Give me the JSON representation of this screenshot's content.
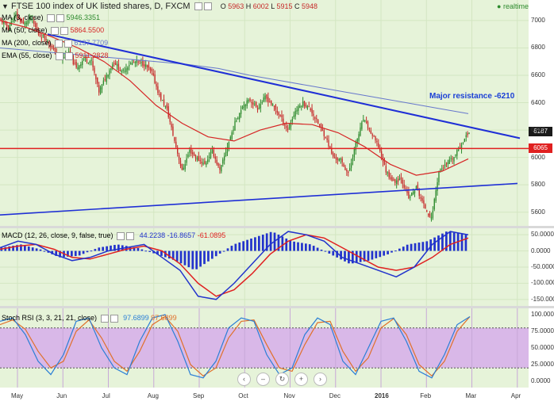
{
  "header": {
    "title": "FTSE 100 index of UK listed shares, D, FXCM",
    "ohlc": [
      {
        "k": "O",
        "v": "5963"
      },
      {
        "k": "H",
        "v": "6002"
      },
      {
        "k": "L",
        "v": "5915"
      },
      {
        "k": "C",
        "v": "5948"
      }
    ],
    "realtime_label": "realtime"
  },
  "indicators": [
    {
      "name": "MA (3, close)",
      "value": "5946.3351",
      "color": "#2d8a2d"
    },
    {
      "name": "MA (50, close)",
      "value": "5864.5500",
      "color": "#d62424"
    },
    {
      "name": "MA (200, close)",
      "value": "6137.7709",
      "color": "#6677cc"
    },
    {
      "name": "EMA (55, close)",
      "value": "5911.2828",
      "color": "#d62424"
    }
  ],
  "annotation": "Major resistance -6210",
  "price_tags": {
    "last": "6187",
    "level": "6065"
  },
  "macd_label": "MACD (12, 26, close, 9, false, true)",
  "macd_values": [
    "44.2238",
    "-16.8657",
    "-61.0895"
  ],
  "rsi_label": "Stoch RSI (3, 3, 21, 21, close)",
  "rsi_values": [
    "97.6899",
    "97.6899"
  ],
  "nav_buttons": [
    "‹",
    "–",
    "↻",
    "+",
    "›"
  ],
  "colors": {
    "up": "#2d8a2d",
    "down": "#c62828",
    "trend": "#1f2fd6",
    "level": "#e02020",
    "ma200": "#6677cc",
    "ema": "#d62424",
    "macd": "#2233cc",
    "signal": "#e02020",
    "rsi_k": "#2b7fd6",
    "rsi_d": "#e0702a"
  },
  "chart_data": [
    {
      "type": "candlestick",
      "title": "FTSE 100 index of UK listed shares, D, FXCM",
      "ylim": [
        5500,
        7150
      ],
      "y_ticks": [
        5600,
        5800,
        6000,
        6200,
        6400,
        6600,
        6800,
        7000
      ],
      "x_ticks": [
        "May",
        "Jun",
        "Jul",
        "Aug",
        "Sep",
        "Oct",
        "Nov",
        "Dec",
        "2016",
        "Feb",
        "Mar",
        "Apr"
      ],
      "close_path": [
        7000,
        6950,
        7040,
        6970,
        7020,
        6900,
        6870,
        6780,
        6720,
        6760,
        6650,
        6720,
        6700,
        6480,
        6600,
        6700,
        6620,
        6680,
        6700,
        6680,
        6620,
        6450,
        6350,
        6120,
        5900,
        6050,
        5990,
        5950,
        6050,
        5900,
        6080,
        6250,
        6380,
        6420,
        6360,
        6440,
        6380,
        6300,
        6200,
        6340,
        6400,
        6350,
        6250,
        6150,
        6000,
        5980,
        5880,
        6100,
        6280,
        6180,
        6080,
        5900,
        5820,
        5850,
        5700,
        5780,
        5650,
        5550,
        5900,
        5950,
        6000,
        6100,
        6187
      ],
      "series": [
        {
          "name": "MA (200, close)",
          "values": [
            6800,
            6780,
            6760,
            6740,
            6720,
            6700,
            6680,
            6650,
            6600,
            6560,
            6520,
            6480,
            6440,
            6400,
            6360,
            6320
          ]
        },
        {
          "name": "EMA (55, close)",
          "values": [
            7000,
            6950,
            6880,
            6800,
            6700,
            6560,
            6380,
            6250,
            6150,
            6120,
            6200,
            6250,
            6240,
            6180,
            6080,
            5950,
            5870,
            5900,
            5990
          ]
        }
      ],
      "trend_upper": [
        6900,
        6210
      ],
      "trend_lower": [
        5580,
        5810
      ],
      "horizontal_level": 6065
    },
    {
      "type": "bar",
      "title": "MACD (12, 26, close, 9, false, true)",
      "ylim": [
        -170,
        70
      ],
      "y_ticks": [
        50,
        0,
        -50,
        -100,
        -150
      ],
      "macd": [
        10,
        30,
        20,
        -10,
        -30,
        -20,
        0,
        10,
        20,
        -20,
        -60,
        -140,
        -150,
        -100,
        -40,
        20,
        60,
        50,
        30,
        -20,
        -40,
        -60,
        -80,
        -50,
        20,
        60,
        50
      ],
      "signal": [
        5,
        15,
        20,
        5,
        -20,
        -25,
        -10,
        5,
        15,
        0,
        -40,
        -100,
        -140,
        -120,
        -70,
        -10,
        30,
        50,
        40,
        10,
        -20,
        -50,
        -60,
        -50,
        -20,
        20,
        40
      ],
      "values": [
        10,
        20,
        5,
        -20,
        -15,
        10,
        20,
        10,
        -10,
        -30,
        -60,
        -20,
        20,
        40,
        60,
        30,
        20,
        -10,
        -40,
        -30,
        -10,
        20,
        30,
        60,
        50
      ]
    },
    {
      "type": "line",
      "title": "Stoch RSI (3, 3, 21, 21, close)",
      "ylim": [
        0,
        100
      ],
      "y_ticks": [
        100,
        75,
        50,
        25,
        0
      ],
      "k": [
        90,
        95,
        70,
        30,
        10,
        40,
        90,
        95,
        50,
        20,
        10,
        60,
        95,
        100,
        60,
        10,
        5,
        30,
        80,
        95,
        90,
        40,
        10,
        20,
        70,
        95,
        85,
        30,
        10,
        50,
        90,
        95,
        60,
        15,
        5,
        40,
        85,
        97
      ],
      "d": [
        85,
        92,
        78,
        45,
        20,
        30,
        75,
        92,
        65,
        30,
        15,
        45,
        85,
        97,
        75,
        25,
        8,
        20,
        65,
        90,
        92,
        55,
        20,
        15,
        55,
        88,
        90,
        45,
        15,
        35,
        80,
        94,
        70,
        25,
        8,
        30,
        75,
        97
      ]
    }
  ]
}
